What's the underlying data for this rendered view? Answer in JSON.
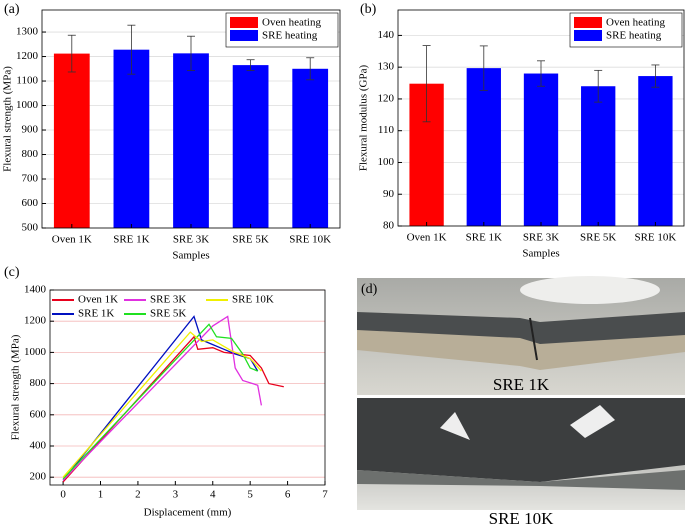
{
  "chart_data": [
    {
      "type": "bar",
      "panel": "(a)",
      "x_label": "Samples",
      "y_label": "Flexural strength (MPa)",
      "categories": [
        "Oven 1K",
        "SRE 1K",
        "SRE 3K",
        "SRE 5K",
        "SRE 10K"
      ],
      "values": [
        1212,
        1228,
        1213,
        1165,
        1150
      ],
      "errors": [
        75,
        100,
        70,
        22,
        45
      ],
      "colors": [
        "#ff0000",
        "#0000ff",
        "#0000ff",
        "#0000ff",
        "#0000ff"
      ],
      "legend": [
        {
          "name": "Oven heating",
          "color": "#ff0000"
        },
        {
          "name": "SRE heating",
          "color": "#0000ff"
        }
      ],
      "ylim": [
        500,
        1390
      ],
      "yticks": [
        500,
        600,
        700,
        800,
        900,
        1000,
        1100,
        1200,
        1300
      ],
      "grid": true
    },
    {
      "type": "bar",
      "panel": "(b)",
      "x_label": "Samples",
      "y_label": "Flexural modulus (GPa)",
      "categories": [
        "Oven 1K",
        "SRE 1K",
        "SRE 3K",
        "SRE 5K",
        "SRE 10K"
      ],
      "values": [
        124.8,
        129.7,
        128,
        124,
        127.2
      ],
      "errors": [
        12,
        7,
        4,
        5,
        3.5
      ],
      "colors": [
        "#ff0000",
        "#0000ff",
        "#0000ff",
        "#0000ff",
        "#0000ff"
      ],
      "legend": [
        {
          "name": "Oven heating",
          "color": "#ff0000"
        },
        {
          "name": "SRE heating",
          "color": "#0000ff"
        }
      ],
      "ylim": [
        80,
        148
      ],
      "yticks": [
        80,
        90,
        100,
        110,
        120,
        130,
        140
      ],
      "grid": true
    },
    {
      "type": "line",
      "panel": "(c)",
      "x_label": "Displacement (mm)",
      "y_label": "Flexural strength (MPa)",
      "xlim": [
        -0.35,
        7
      ],
      "xticks": [
        0,
        1,
        2,
        3,
        4,
        5,
        6,
        7
      ],
      "ylim": [
        150,
        1400
      ],
      "yticks": [
        200,
        400,
        600,
        800,
        1000,
        1200,
        1400
      ],
      "grid": true,
      "series": [
        {
          "name": "Oven 1K",
          "color": "#e8001c",
          "x": [
            0,
            3.5,
            3.6,
            4,
            4.3,
            5,
            5.3,
            5.5,
            5.9
          ],
          "values": [
            170,
            1100,
            1020,
            1030,
            1000,
            980,
            900,
            800,
            780
          ]
        },
        {
          "name": "SRE 1K",
          "color": "#0010c0",
          "x": [
            0,
            3.5,
            3.7,
            4,
            4.3,
            4.6,
            5,
            5.2
          ],
          "values": [
            180,
            1230,
            1080,
            1050,
            1020,
            990,
            960,
            880
          ]
        },
        {
          "name": "SRE 3K",
          "color": "#e030e0",
          "x": [
            0,
            4,
            4.4,
            4.6,
            4.8,
            5.2,
            5.3
          ],
          "values": [
            180,
            1170,
            1230,
            900,
            820,
            790,
            660
          ]
        },
        {
          "name": "SRE 5K",
          "color": "#20e020",
          "x": [
            0,
            3.9,
            4.1,
            4.5,
            4.8,
            5,
            5.2
          ],
          "values": [
            190,
            1180,
            1100,
            1090,
            990,
            900,
            880
          ]
        },
        {
          "name": "SRE 10K",
          "color": "#f0f000",
          "x": [
            0,
            3.4,
            3.7,
            4,
            4.5,
            5,
            5.3
          ],
          "values": [
            200,
            1130,
            1070,
            1080,
            1010,
            960,
            880
          ]
        }
      ]
    }
  ],
  "photos": {
    "panel": "(d)",
    "captions": [
      "SRE 1K",
      "SRE 10K"
    ]
  }
}
